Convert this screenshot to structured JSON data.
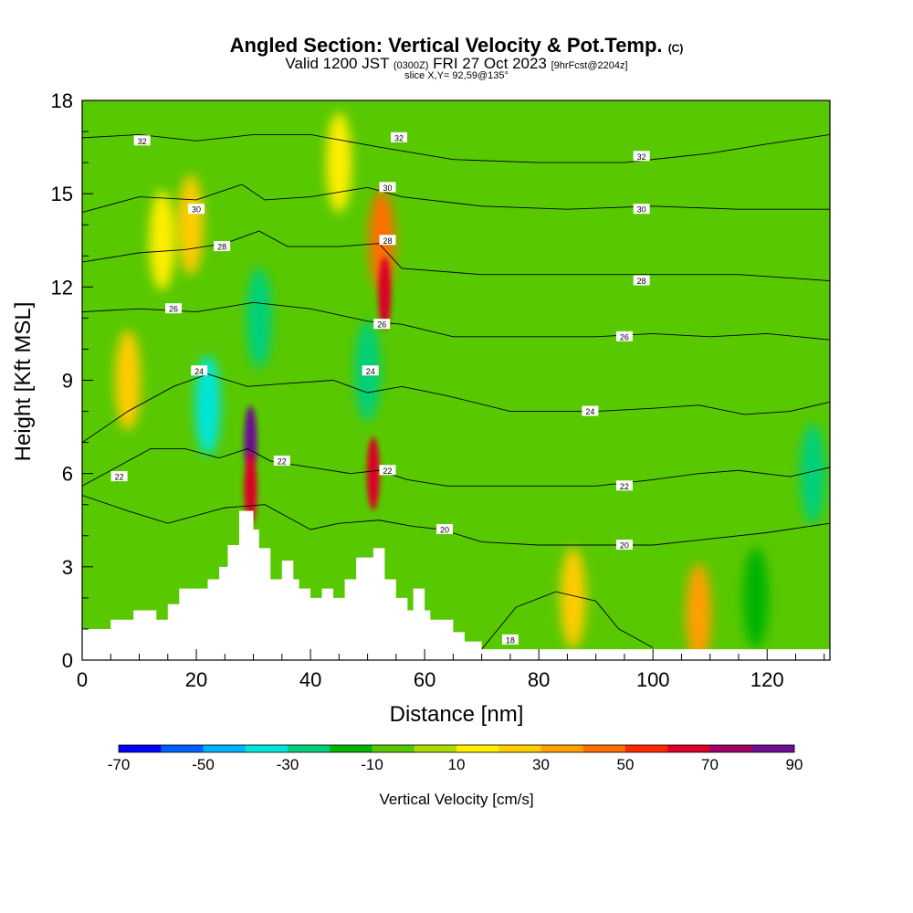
{
  "title": "Angled Section: Vertical Velocity & Pot.Temp.",
  "title_mark": "(C)",
  "subtitle_prefix": "Valid 1200 JST",
  "subtitle_utc": "(0300Z)",
  "subtitle_date": "FRI 27 Oct 2023",
  "subtitle_fcst": "[9hrFcst@2204z]",
  "slice_label": "slice X,Y= 92,59@135°",
  "chart_data": {
    "type": "heatmap",
    "xlabel": "Distance [nm]",
    "ylabel": "Height [Kft MSL]",
    "xlim": [
      0,
      131
    ],
    "ylim": [
      0,
      18
    ],
    "xticks": [
      0,
      20,
      40,
      60,
      80,
      100,
      120
    ],
    "yticks": [
      0,
      3,
      6,
      9,
      12,
      15,
      18
    ],
    "colorbar": {
      "label": "Vertical Velocity [cm/s]",
      "ticks": [
        -70,
        -50,
        -30,
        -10,
        10,
        30,
        50,
        70,
        90
      ],
      "bounds": [
        -70,
        -60,
        -50,
        -40,
        -30,
        -20,
        -10,
        0,
        10,
        20,
        30,
        40,
        50,
        60,
        70,
        80,
        90
      ],
      "colors": [
        "#0000ff",
        "#0060ff",
        "#00b0ff",
        "#00e6dc",
        "#00d07a",
        "#00b400",
        "#58c800",
        "#aadc00",
        "#ffee00",
        "#ffcc00",
        "#ff9f00",
        "#ff6e00",
        "#ff2800",
        "#dc0028",
        "#a00064",
        "#6e1090"
      ]
    },
    "contours": {
      "variable": "Potential Temperature",
      "labels": [
        18,
        20,
        22,
        24,
        26,
        28,
        30,
        32
      ]
    },
    "velocity_cells": [
      {
        "x": 29.5,
        "y": 7.0,
        "value": 85
      },
      {
        "x": 29.5,
        "y": 5.5,
        "value": 60
      },
      {
        "x": 51,
        "y": 6.0,
        "value": 65
      },
      {
        "x": 53,
        "y": 11.8,
        "value": 60
      },
      {
        "x": 52.5,
        "y": 13.5,
        "value": 40
      },
      {
        "x": 22,
        "y": 8.2,
        "value": -35
      },
      {
        "x": 31,
        "y": 11,
        "value": -30
      },
      {
        "x": 50,
        "y": 9.3,
        "value": -25
      },
      {
        "x": 14,
        "y": 13.5,
        "value": 15
      },
      {
        "x": 19,
        "y": 14,
        "value": 25
      },
      {
        "x": 45,
        "y": 16,
        "value": 15
      },
      {
        "x": 8,
        "y": 9,
        "value": 20
      },
      {
        "x": 86,
        "y": 2.0,
        "value": 20
      },
      {
        "x": 108,
        "y": 1.5,
        "value": 30
      },
      {
        "x": 118,
        "y": 2,
        "value": -15
      },
      {
        "x": 128,
        "y": 6,
        "value": -30
      }
    ],
    "terrain_kft": [
      [
        0,
        1
      ],
      [
        5,
        1
      ],
      [
        5,
        1.3
      ],
      [
        9,
        1.3
      ],
      [
        9,
        1.6
      ],
      [
        13,
        1.6
      ],
      [
        13,
        1.3
      ],
      [
        15,
        1.3
      ],
      [
        15,
        1.8
      ],
      [
        17,
        1.8
      ],
      [
        17,
        2.3
      ],
      [
        22,
        2.3
      ],
      [
        22,
        2.6
      ],
      [
        24,
        2.6
      ],
      [
        24,
        3
      ],
      [
        25.5,
        3
      ],
      [
        25.5,
        3.7
      ],
      [
        27.5,
        3.7
      ],
      [
        27.5,
        4.8
      ],
      [
        30,
        4.8
      ],
      [
        30,
        4.2
      ],
      [
        31,
        4.2
      ],
      [
        31,
        3.6
      ],
      [
        33,
        3.6
      ],
      [
        33,
        2.6
      ],
      [
        35,
        2.6
      ],
      [
        35,
        3.2
      ],
      [
        37,
        3.2
      ],
      [
        37,
        2.6
      ],
      [
        38,
        2.6
      ],
      [
        38,
        2.3
      ],
      [
        40,
        2.3
      ],
      [
        40,
        2.0
      ],
      [
        42,
        2.0
      ],
      [
        42,
        2.3
      ],
      [
        44,
        2.3
      ],
      [
        44,
        2.0
      ],
      [
        46,
        2.0
      ],
      [
        46,
        2.6
      ],
      [
        48,
        2.6
      ],
      [
        48,
        3.3
      ],
      [
        51,
        3.3
      ],
      [
        51,
        3.6
      ],
      [
        53,
        3.6
      ],
      [
        53,
        2.6
      ],
      [
        55,
        2.6
      ],
      [
        55,
        2.0
      ],
      [
        57,
        2.0
      ],
      [
        57,
        1.6
      ],
      [
        58,
        1.6
      ],
      [
        58,
        2.3
      ],
      [
        60,
        2.3
      ],
      [
        60,
        1.6
      ],
      [
        61,
        1.6
      ],
      [
        61,
        1.3
      ],
      [
        65,
        1.3
      ],
      [
        65,
        0.9
      ],
      [
        67,
        0.9
      ],
      [
        67,
        0.6
      ],
      [
        70,
        0.6
      ],
      [
        70,
        0.35
      ],
      [
        131,
        0.35
      ]
    ],
    "isentropes": [
      {
        "value": 18,
        "points": [
          [
            70,
            0.35
          ],
          [
            76,
            1.7
          ],
          [
            83,
            2.2
          ],
          [
            90,
            1.9
          ],
          [
            94,
            1.0
          ],
          [
            100,
            0.4
          ]
        ]
      },
      {
        "value": 20,
        "points": [
          [
            0,
            5.3
          ],
          [
            8,
            4.8
          ],
          [
            15,
            4.4
          ],
          [
            25,
            4.9
          ],
          [
            32,
            5.0
          ],
          [
            40,
            4.2
          ],
          [
            45,
            4.4
          ],
          [
            52,
            4.5
          ],
          [
            58,
            4.3
          ],
          [
            63,
            4.2
          ],
          [
            70,
            3.8
          ],
          [
            80,
            3.7
          ],
          [
            90,
            3.7
          ],
          [
            100,
            3.7
          ],
          [
            110,
            3.9
          ],
          [
            120,
            4.1
          ],
          [
            131,
            4.4
          ]
        ]
      },
      {
        "value": 22,
        "points": [
          [
            0,
            5.6
          ],
          [
            6,
            6.2
          ],
          [
            12,
            6.8
          ],
          [
            18,
            6.8
          ],
          [
            24,
            6.5
          ],
          [
            29,
            6.8
          ],
          [
            33,
            6.4
          ],
          [
            40,
            6.2
          ],
          [
            47,
            6.0
          ],
          [
            52,
            6.1
          ],
          [
            57,
            5.8
          ],
          [
            64,
            5.6
          ],
          [
            75,
            5.6
          ],
          [
            90,
            5.6
          ],
          [
            100,
            5.8
          ],
          [
            108,
            6.0
          ],
          [
            115,
            6.1
          ],
          [
            124,
            5.9
          ],
          [
            131,
            6.2
          ]
        ]
      },
      {
        "value": 24,
        "points": [
          [
            0,
            7.0
          ],
          [
            8,
            8.0
          ],
          [
            16,
            8.8
          ],
          [
            22,
            9.2
          ],
          [
            29,
            8.8
          ],
          [
            36,
            8.9
          ],
          [
            44,
            9.0
          ],
          [
            50,
            8.6
          ],
          [
            56,
            8.8
          ],
          [
            64,
            8.5
          ],
          [
            75,
            8.0
          ],
          [
            90,
            8.0
          ],
          [
            100,
            8.1
          ],
          [
            108,
            8.2
          ],
          [
            116,
            7.9
          ],
          [
            124,
            8.0
          ],
          [
            131,
            8.3
          ]
        ]
      },
      {
        "value": 26,
        "points": [
          [
            0,
            11.2
          ],
          [
            10,
            11.3
          ],
          [
            20,
            11.2
          ],
          [
            30,
            11.5
          ],
          [
            40,
            11.3
          ],
          [
            50,
            10.9
          ],
          [
            56,
            10.8
          ],
          [
            65,
            10.4
          ],
          [
            75,
            10.4
          ],
          [
            90,
            10.4
          ],
          [
            100,
            10.5
          ],
          [
            110,
            10.4
          ],
          [
            120,
            10.5
          ],
          [
            131,
            10.3
          ]
        ]
      },
      {
        "value": 28,
        "points": [
          [
            0,
            12.8
          ],
          [
            10,
            13.1
          ],
          [
            18,
            13.2
          ],
          [
            25,
            13.4
          ],
          [
            31,
            13.8
          ],
          [
            36,
            13.3
          ],
          [
            45,
            13.3
          ],
          [
            52,
            13.4
          ],
          [
            56,
            12.6
          ],
          [
            70,
            12.4
          ],
          [
            85,
            12.4
          ],
          [
            100,
            12.4
          ],
          [
            115,
            12.4
          ],
          [
            131,
            12.2
          ]
        ]
      },
      {
        "value": 30,
        "points": [
          [
            0,
            14.4
          ],
          [
            10,
            14.9
          ],
          [
            20,
            14.8
          ],
          [
            28,
            15.3
          ],
          [
            32,
            14.8
          ],
          [
            40,
            14.9
          ],
          [
            50,
            15.2
          ],
          [
            56,
            14.9
          ],
          [
            70,
            14.6
          ],
          [
            85,
            14.5
          ],
          [
            100,
            14.6
          ],
          [
            115,
            14.5
          ],
          [
            131,
            14.5
          ]
        ]
      },
      {
        "value": 32,
        "points": [
          [
            0,
            16.8
          ],
          [
            10,
            16.9
          ],
          [
            20,
            16.7
          ],
          [
            30,
            16.9
          ],
          [
            40,
            16.9
          ],
          [
            52,
            16.5
          ],
          [
            65,
            16.1
          ],
          [
            80,
            16.0
          ],
          [
            95,
            16.0
          ],
          [
            110,
            16.3
          ],
          [
            120,
            16.6
          ],
          [
            131,
            16.9
          ]
        ]
      }
    ],
    "contour_labels": [
      {
        "value": 32,
        "x": 10.5,
        "y": 16.7
      },
      {
        "value": 32,
        "x": 55.5,
        "y": 16.8
      },
      {
        "value": 32,
        "x": 98,
        "y": 16.2
      },
      {
        "value": 30,
        "x": 20,
        "y": 14.5
      },
      {
        "value": 30,
        "x": 53.5,
        "y": 15.2
      },
      {
        "value": 30,
        "x": 98,
        "y": 14.5
      },
      {
        "value": 28,
        "x": 24.5,
        "y": 13.3
      },
      {
        "value": 28,
        "x": 53.5,
        "y": 13.5
      },
      {
        "value": 28,
        "x": 98,
        "y": 12.2
      },
      {
        "value": 26,
        "x": 16,
        "y": 11.3
      },
      {
        "value": 26,
        "x": 52.5,
        "y": 10.8
      },
      {
        "value": 26,
        "x": 95,
        "y": 10.4
      },
      {
        "value": 24,
        "x": 20.5,
        "y": 9.3
      },
      {
        "value": 24,
        "x": 50.5,
        "y": 9.3
      },
      {
        "value": 24,
        "x": 89,
        "y": 8.0
      },
      {
        "value": 22,
        "x": 6.5,
        "y": 5.9
      },
      {
        "value": 22,
        "x": 35,
        "y": 6.4
      },
      {
        "value": 22,
        "x": 53.5,
        "y": 6.1
      },
      {
        "value": 22,
        "x": 95,
        "y": 5.6
      },
      {
        "value": 20,
        "x": 63.5,
        "y": 4.2
      },
      {
        "value": 20,
        "x": 95,
        "y": 3.7
      },
      {
        "value": 18,
        "x": 75,
        "y": 0.65
      }
    ]
  }
}
